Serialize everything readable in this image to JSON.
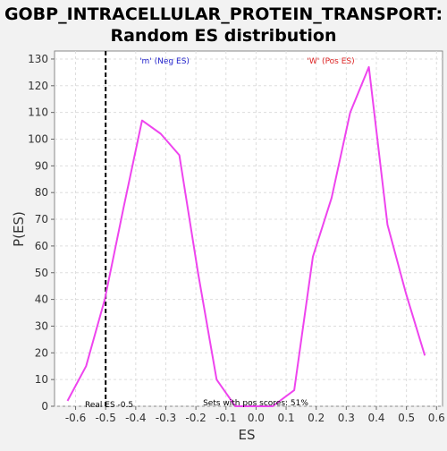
{
  "chart_data": {
    "type": "line",
    "title": "GOBP_INTRACELLULAR_PROTEIN_TRANSPORT:",
    "subtitle": "Random ES distribution",
    "xlabel": "ES",
    "ylabel": "P(ES)",
    "xlim": [
      -0.67,
      0.62
    ],
    "ylim": [
      0,
      133
    ],
    "x_ticks": [
      -0.6,
      -0.5,
      -0.4,
      -0.3,
      -0.2,
      -0.1,
      0.0,
      0.1,
      0.2,
      0.3,
      0.4,
      0.5,
      0.6
    ],
    "x_tick_labels": [
      "-0.6",
      "-0.5",
      "-0.4",
      "-0.3",
      "-0.2",
      "-0.1",
      "0.0",
      "0.1",
      "0.2",
      "0.3",
      "0.4",
      "0.5",
      "0.6"
    ],
    "y_ticks": [
      0,
      10,
      20,
      30,
      40,
      50,
      60,
      70,
      80,
      90,
      100,
      110,
      120,
      130
    ],
    "y_tick_labels": [
      "0",
      "10",
      "20",
      "30",
      "40",
      "50",
      "60",
      "70",
      "80",
      "90",
      "100",
      "110",
      "120",
      "130"
    ],
    "grid": true,
    "series": [
      {
        "color": "#ee44ee",
        "x": [
          -0.627,
          -0.565,
          -0.503,
          -0.441,
          -0.379,
          -0.317,
          -0.255,
          -0.193,
          -0.131,
          -0.069,
          -0.007,
          0.055,
          0.127,
          0.189,
          0.251,
          0.313,
          0.375,
          0.437,
          0.499,
          0.561
        ],
        "y": [
          2,
          15,
          40,
          74,
          107,
          102,
          94,
          50,
          10,
          0,
          0,
          0,
          6,
          56,
          78,
          110,
          127,
          68,
          42,
          19
        ]
      }
    ],
    "real_es": -0.5,
    "annotations": {
      "neg_label": "'m' (Neg ES)",
      "neg_color": "#2222cc",
      "pos_label": "'W' (Pos ES)",
      "pos_color": "#dd2222",
      "real_es_label": "Real ES -0.5",
      "sets_label": "Sets with pos scores: 51%"
    }
  }
}
